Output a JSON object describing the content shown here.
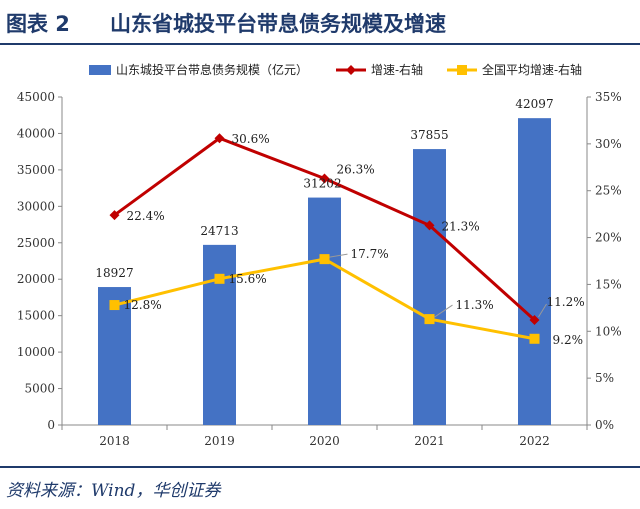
{
  "figure": {
    "label": "图表 2",
    "title": "山东省城投平台带息债务规模及增速",
    "source": "资料来源：Wind，华创证券"
  },
  "colors": {
    "bar": "#4472c4",
    "growth": "#c00000",
    "national": "#ffc000",
    "title": "#1f3a6b"
  },
  "chart_data": {
    "type": "bar",
    "categories": [
      "2018",
      "2019",
      "2020",
      "2021",
      "2022"
    ],
    "series": [
      {
        "name": "山东城投平台带息债务规模（亿元）",
        "type": "bar",
        "axis": "left",
        "values": [
          18927,
          24713,
          31202,
          37855,
          42097
        ],
        "labels": [
          "18927",
          "24713",
          "31202",
          "37855",
          "42097"
        ]
      },
      {
        "name": "增速-右轴",
        "type": "line",
        "axis": "right",
        "marker": "diamond",
        "values": [
          22.4,
          30.6,
          26.3,
          21.3,
          11.2
        ],
        "labels": [
          "22.4%",
          "30.6%",
          "26.3%",
          "21.3%",
          "11.2%"
        ]
      },
      {
        "name": "全国平均增速-右轴",
        "type": "line",
        "axis": "right",
        "marker": "square",
        "values": [
          12.8,
          15.6,
          17.7,
          11.3,
          9.2
        ],
        "labels": [
          "12.8%",
          "15.6%",
          "17.7%",
          "11.3%",
          "9.2%"
        ]
      }
    ],
    "y_left": {
      "range": [
        0,
        45000
      ],
      "ticks": [
        "0",
        "5000",
        "10000",
        "15000",
        "20000",
        "25000",
        "30000",
        "35000",
        "40000",
        "45000"
      ]
    },
    "y_right": {
      "range": [
        0,
        35
      ],
      "ticks": [
        "0%",
        "5%",
        "10%",
        "15%",
        "20%",
        "25%",
        "30%",
        "35%"
      ]
    },
    "grid": false,
    "legend_position": "top"
  }
}
